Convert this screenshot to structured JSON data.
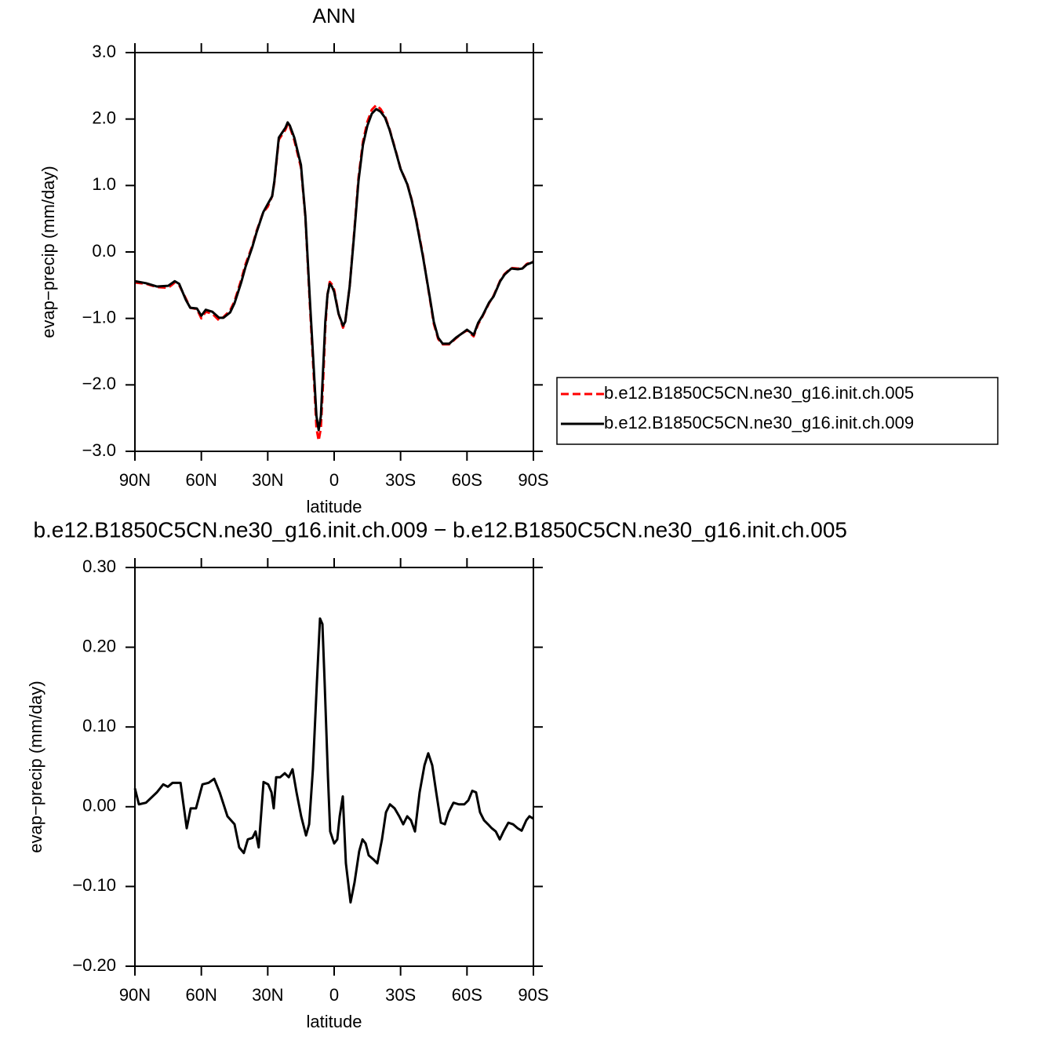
{
  "chart_data": [
    {
      "type": "line",
      "title": "ANN",
      "xlabel": "latitude",
      "ylabel": "evap−precip (mm/day)",
      "x": [
        90,
        85,
        80,
        75,
        72,
        70,
        67,
        65,
        62,
        60,
        58,
        55,
        52,
        50,
        47,
        45,
        42,
        40,
        37,
        35,
        32,
        30,
        28,
        27,
        25,
        22,
        21,
        20,
        18,
        15,
        13,
        11,
        9,
        8,
        7,
        6,
        5,
        4,
        3,
        2,
        1,
        0,
        -2,
        -4,
        -5,
        -7,
        -9,
        -11,
        -13,
        -15,
        -17,
        -19,
        -21,
        -23,
        -25,
        -28,
        -30,
        -33,
        -35,
        -37,
        -40,
        -43,
        -45,
        -47,
        -49,
        -52,
        -55,
        -58,
        -60,
        -62,
        -63,
        -65,
        -67,
        -70,
        -72,
        -75,
        -77,
        -80,
        -83,
        -85,
        -87,
        -90
      ],
      "series": [
        {
          "name": "b.e12.B1850C5CN.ne30_g16.init.ch.005",
          "color": "#ff0000",
          "dash": "dashed",
          "values": [
            -0.46,
            -0.48,
            -0.53,
            -0.54,
            -0.46,
            -0.5,
            -0.7,
            -0.84,
            -0.86,
            -1.0,
            -0.9,
            -0.93,
            -1.03,
            -0.98,
            -0.88,
            -0.74,
            -0.42,
            -0.18,
            0.09,
            0.32,
            0.6,
            0.68,
            0.84,
            1.05,
            1.69,
            1.84,
            1.92,
            1.88,
            1.68,
            1.27,
            0.52,
            -0.78,
            -2.0,
            -2.65,
            -2.84,
            -2.65,
            -1.97,
            -1.15,
            -0.64,
            -0.45,
            -0.49,
            -0.57,
            -0.93,
            -1.14,
            -1.05,
            -0.52,
            0.28,
            1.12,
            1.66,
            1.96,
            2.14,
            2.21,
            2.15,
            2.04,
            1.85,
            1.5,
            1.25,
            1.03,
            0.79,
            0.5,
            -0.03,
            -0.66,
            -1.08,
            -1.31,
            -1.39,
            -1.39,
            -1.3,
            -1.22,
            -1.18,
            -1.24,
            -1.27,
            -1.09,
            -0.97,
            -0.77,
            -0.66,
            -0.43,
            -0.33,
            -0.24,
            -0.25,
            -0.25,
            -0.18,
            -0.14
          ]
        },
        {
          "name": "b.e12.B1850C5CN.ne30_g16.init.ch.009",
          "color": "#000000",
          "dash": "solid",
          "values": [
            -0.44,
            -0.47,
            -0.52,
            -0.51,
            -0.44,
            -0.48,
            -0.72,
            -0.84,
            -0.85,
            -0.96,
            -0.87,
            -0.9,
            -0.99,
            -0.99,
            -0.91,
            -0.77,
            -0.46,
            -0.22,
            0.07,
            0.3,
            0.6,
            0.72,
            0.84,
            1.07,
            1.72,
            1.87,
            1.95,
            1.9,
            1.72,
            1.31,
            0.54,
            -0.7,
            -1.88,
            -2.47,
            -2.68,
            -2.47,
            -1.77,
            -1.05,
            -0.64,
            -0.48,
            -0.52,
            -0.6,
            -0.93,
            -1.11,
            -1.05,
            -0.52,
            0.25,
            1.07,
            1.61,
            1.9,
            2.08,
            2.15,
            2.11,
            2.02,
            1.84,
            1.49,
            1.25,
            1.02,
            0.78,
            0.48,
            -0.05,
            -0.64,
            -1.05,
            -1.29,
            -1.38,
            -1.38,
            -1.29,
            -1.22,
            -1.17,
            -1.22,
            -1.25,
            -1.07,
            -0.96,
            -0.76,
            -0.67,
            -0.44,
            -0.34,
            -0.25,
            -0.26,
            -0.25,
            -0.19,
            -0.15
          ]
        }
      ],
      "xlim": [
        90,
        -90
      ],
      "xticks": [
        {
          "value": 90,
          "label": "90N"
        },
        {
          "value": 60,
          "label": "60N"
        },
        {
          "value": 30,
          "label": "30N"
        },
        0,
        {
          "value": -30,
          "label": "30S"
        },
        {
          "value": -60,
          "label": "60S"
        },
        {
          "value": -90,
          "label": "90S"
        }
      ],
      "ylim": [
        -3,
        3
      ],
      "yticks": [
        {
          "value": 3,
          "label": "3.0"
        },
        {
          "value": 2,
          "label": "2.0"
        },
        {
          "value": 1,
          "label": "1.0"
        },
        {
          "value": 0,
          "label": "0.0"
        },
        {
          "value": -1,
          "label": "−1.0"
        },
        {
          "value": -2,
          "label": "−2.0"
        },
        {
          "value": -3,
          "label": "−3.0"
        }
      ],
      "legend": "outside-right"
    },
    {
      "type": "line",
      "title": "b.e12.B1850C5CN.ne30_g16.init.ch.009  −  b.e12.B1850C5CN.ne30_g16.init.ch.005",
      "xlabel": "latitude",
      "ylabel": "evap−precip (mm/day)",
      "x": [
        90,
        88.2,
        85,
        80.1,
        77.2,
        75.1,
        73,
        69.4,
        66.6,
        64.8,
        62.4,
        59.5,
        56.7,
        54.2,
        51.7,
        48.2,
        45,
        42.9,
        40.8,
        39,
        36.9,
        35.5,
        34.1,
        31.9,
        29.8,
        28.3,
        27.3,
        26.2,
        24.4,
        22.3,
        20.5,
        18.8,
        17,
        14.9,
        12.7,
        11.3,
        9.6,
        7.8,
        6.4,
        5.3,
        4.3,
        2.8,
        1.8,
        0,
        -1.4,
        -2.5,
        -3.9,
        -5.3,
        -7.4,
        -9.2,
        -11.3,
        -12.8,
        -14.2,
        -15.6,
        -17.7,
        -19.5,
        -21.6,
        -23.4,
        -25.2,
        -27.3,
        -29.4,
        -31.2,
        -33,
        -34.7,
        -36.5,
        -38.6,
        -40.8,
        -42.5,
        -44.3,
        -46.1,
        -48.2,
        -50,
        -51.7,
        -53.9,
        -56.3,
        -58.8,
        -60.6,
        -62.4,
        -64.1,
        -65.9,
        -67.7,
        -69.5,
        -71.2,
        -73,
        -74.8,
        -76.5,
        -78.7,
        -80.8,
        -82.9,
        -84.7,
        -86.8,
        -88.2,
        -90
      ],
      "series": [
        {
          "color": "#000000",
          "dash": "solid",
          "values": [
            0.023,
            0.003,
            0.005,
            0.018,
            0.028,
            0.025,
            0.03,
            0.03,
            -0.027,
            -0.002,
            -0.002,
            0.028,
            0.03,
            0.035,
            0.018,
            -0.012,
            -0.022,
            -0.051,
            -0.058,
            -0.041,
            -0.039,
            -0.031,
            -0.051,
            0.031,
            0.028,
            0.018,
            -0.002,
            0.037,
            0.037,
            0.042,
            0.037,
            0.047,
            0.018,
            -0.012,
            -0.036,
            -0.022,
            0.047,
            0.156,
            0.236,
            0.229,
            0.156,
            0.037,
            -0.031,
            -0.046,
            -0.041,
            -0.012,
            0.013,
            -0.071,
            -0.12,
            -0.095,
            -0.056,
            -0.041,
            -0.046,
            -0.061,
            -0.066,
            -0.071,
            -0.041,
            -0.007,
            0.003,
            -0.002,
            -0.012,
            -0.022,
            -0.012,
            -0.017,
            -0.031,
            0.018,
            0.052,
            0.067,
            0.052,
            0.018,
            -0.02,
            -0.022,
            -0.007,
            0.005,
            0.003,
            0.003,
            0.008,
            0.02,
            0.018,
            -0.007,
            -0.017,
            -0.022,
            -0.027,
            -0.031,
            -0.041,
            -0.031,
            -0.02,
            -0.022,
            -0.027,
            -0.03,
            -0.017,
            -0.012,
            -0.015
          ]
        }
      ],
      "xlim": [
        90,
        -90
      ],
      "xticks": [
        {
          "value": 90,
          "label": "90N"
        },
        {
          "value": 60,
          "label": "60N"
        },
        {
          "value": 30,
          "label": "30N"
        },
        0,
        {
          "value": -30,
          "label": "30S"
        },
        {
          "value": -60,
          "label": "60S"
        },
        {
          "value": -90,
          "label": "90S"
        }
      ],
      "ylim": [
        -0.2,
        0.3
      ],
      "yticks": [
        {
          "value": 0.3,
          "label": "0.30"
        },
        {
          "value": 0.2,
          "label": "0.20"
        },
        {
          "value": 0.1,
          "label": "0.10"
        },
        {
          "value": 0,
          "label": "0.00"
        },
        {
          "value": -0.1,
          "label": "−0.10"
        },
        {
          "value": -0.2,
          "label": "−0.20"
        }
      ]
    }
  ]
}
